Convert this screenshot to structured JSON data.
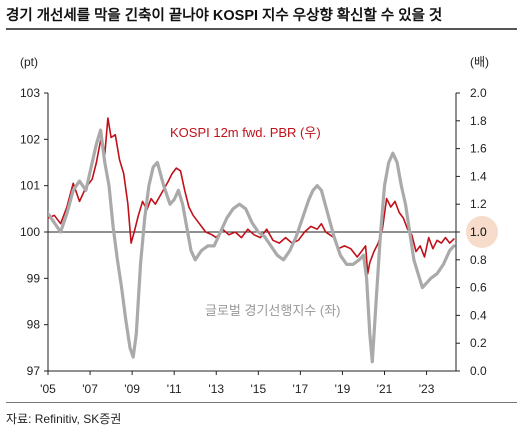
{
  "title": "경기 개선세를 막을 긴축이 끝나야 KOSPI 지수 우상향 확신할 수 있을 것",
  "source": "자료: Refinitiv, SK증권",
  "chart_data": {
    "type": "line",
    "left_unit": "(pt)",
    "right_unit": "(배)",
    "left_axis": {
      "ylim": [
        97,
        103
      ],
      "ticks": [
        "97",
        "98",
        "99",
        "100",
        "101",
        "102",
        "103"
      ]
    },
    "right_axis": {
      "ylim": [
        0.0,
        2.0
      ],
      "ticks": [
        "0.0",
        "0.2",
        "0.4",
        "0.6",
        "0.8",
        "1.0",
        "1.2",
        "1.4",
        "1.6",
        "1.8",
        "2.0"
      ]
    },
    "x_axis": {
      "xlim": [
        2005,
        2024.4
      ],
      "ticks": [
        "'05",
        "'07",
        "'09",
        "'11",
        "'13",
        "'15",
        "'17",
        "'19",
        "'21",
        "'23"
      ]
    },
    "reference_line": {
      "axis": "left",
      "value": 100
    },
    "highlight": {
      "axis": "right",
      "value": 1.0,
      "label": "1.0",
      "color": "#f7dccb"
    },
    "series": [
      {
        "name": "KOSPI 12m fwd. PBR (우)",
        "axis": "right",
        "color": "#c0111a",
        "points": [
          [
            2005.0,
            1.1
          ],
          [
            2005.3,
            1.12
          ],
          [
            2005.6,
            1.06
          ],
          [
            2005.9,
            1.18
          ],
          [
            2006.2,
            1.35
          ],
          [
            2006.5,
            1.22
          ],
          [
            2006.8,
            1.32
          ],
          [
            2007.1,
            1.38
          ],
          [
            2007.3,
            1.5
          ],
          [
            2007.5,
            1.66
          ],
          [
            2007.7,
            1.56
          ],
          [
            2007.85,
            1.82
          ],
          [
            2008.0,
            1.68
          ],
          [
            2008.2,
            1.7
          ],
          [
            2008.4,
            1.52
          ],
          [
            2008.6,
            1.42
          ],
          [
            2008.8,
            1.2
          ],
          [
            2008.95,
            0.92
          ],
          [
            2009.1,
            1.0
          ],
          [
            2009.3,
            1.12
          ],
          [
            2009.5,
            1.22
          ],
          [
            2009.7,
            1.16
          ],
          [
            2009.9,
            1.24
          ],
          [
            2010.1,
            1.2
          ],
          [
            2010.4,
            1.28
          ],
          [
            2010.7,
            1.36
          ],
          [
            2010.9,
            1.42
          ],
          [
            2011.1,
            1.46
          ],
          [
            2011.3,
            1.44
          ],
          [
            2011.5,
            1.3
          ],
          [
            2011.7,
            1.18
          ],
          [
            2011.9,
            1.12
          ],
          [
            2012.2,
            1.06
          ],
          [
            2012.5,
            1.0
          ],
          [
            2012.8,
            0.98
          ],
          [
            2013.0,
            0.96
          ],
          [
            2013.3,
            1.02
          ],
          [
            2013.6,
            0.98
          ],
          [
            2013.9,
            1.0
          ],
          [
            2014.2,
            0.96
          ],
          [
            2014.5,
            1.02
          ],
          [
            2014.8,
            0.98
          ],
          [
            2015.1,
            0.96
          ],
          [
            2015.4,
            1.02
          ],
          [
            2015.7,
            0.94
          ],
          [
            2016.0,
            0.92
          ],
          [
            2016.3,
            0.96
          ],
          [
            2016.6,
            0.92
          ],
          [
            2016.9,
            0.94
          ],
          [
            2017.2,
            1.0
          ],
          [
            2017.5,
            1.04
          ],
          [
            2017.8,
            1.02
          ],
          [
            2018.0,
            1.06
          ],
          [
            2018.2,
            1.0
          ],
          [
            2018.4,
            0.98
          ],
          [
            2018.6,
            0.96
          ],
          [
            2018.8,
            0.88
          ],
          [
            2019.1,
            0.9
          ],
          [
            2019.4,
            0.88
          ],
          [
            2019.7,
            0.82
          ],
          [
            2019.9,
            0.86
          ],
          [
            2020.1,
            0.9
          ],
          [
            2020.2,
            0.7
          ],
          [
            2020.3,
            0.78
          ],
          [
            2020.5,
            0.86
          ],
          [
            2020.7,
            0.92
          ],
          [
            2020.9,
            1.02
          ],
          [
            2021.1,
            1.24
          ],
          [
            2021.3,
            1.18
          ],
          [
            2021.5,
            1.22
          ],
          [
            2021.7,
            1.14
          ],
          [
            2021.9,
            1.1
          ],
          [
            2022.1,
            1.02
          ],
          [
            2022.3,
            0.98
          ],
          [
            2022.5,
            0.86
          ],
          [
            2022.7,
            0.9
          ],
          [
            2022.9,
            0.82
          ],
          [
            2023.1,
            0.96
          ],
          [
            2023.3,
            0.88
          ],
          [
            2023.5,
            0.94
          ],
          [
            2023.7,
            0.92
          ],
          [
            2023.9,
            0.96
          ],
          [
            2024.1,
            0.92
          ],
          [
            2024.3,
            0.95
          ]
        ]
      },
      {
        "name": "글로벌 경기선행지수 (좌)",
        "axis": "left",
        "color": "#aaaaaa",
        "points": [
          [
            2005.0,
            100.4
          ],
          [
            2005.3,
            100.2
          ],
          [
            2005.6,
            100.0
          ],
          [
            2005.9,
            100.4
          ],
          [
            2006.2,
            100.9
          ],
          [
            2006.5,
            101.1
          ],
          [
            2006.8,
            100.9
          ],
          [
            2007.0,
            101.3
          ],
          [
            2007.3,
            101.9
          ],
          [
            2007.5,
            102.2
          ],
          [
            2007.7,
            101.5
          ],
          [
            2007.9,
            101.0
          ],
          [
            2008.1,
            100.1
          ],
          [
            2008.3,
            99.4
          ],
          [
            2008.5,
            98.8
          ],
          [
            2008.7,
            98.1
          ],
          [
            2008.9,
            97.5
          ],
          [
            2009.05,
            97.3
          ],
          [
            2009.2,
            97.8
          ],
          [
            2009.4,
            99.3
          ],
          [
            2009.6,
            100.3
          ],
          [
            2009.8,
            101.0
          ],
          [
            2010.0,
            101.4
          ],
          [
            2010.2,
            101.5
          ],
          [
            2010.5,
            101.0
          ],
          [
            2010.8,
            100.6
          ],
          [
            2011.0,
            100.7
          ],
          [
            2011.2,
            100.9
          ],
          [
            2011.4,
            100.6
          ],
          [
            2011.6,
            100.1
          ],
          [
            2011.8,
            99.6
          ],
          [
            2012.0,
            99.4
          ],
          [
            2012.3,
            99.6
          ],
          [
            2012.6,
            99.7
          ],
          [
            2012.9,
            99.7
          ],
          [
            2013.2,
            100.0
          ],
          [
            2013.5,
            100.3
          ],
          [
            2013.8,
            100.5
          ],
          [
            2014.1,
            100.6
          ],
          [
            2014.4,
            100.5
          ],
          [
            2014.7,
            100.2
          ],
          [
            2015.0,
            100.0
          ],
          [
            2015.3,
            99.9
          ],
          [
            2015.6,
            99.7
          ],
          [
            2015.9,
            99.5
          ],
          [
            2016.2,
            99.4
          ],
          [
            2016.5,
            99.6
          ],
          [
            2016.8,
            99.9
          ],
          [
            2017.1,
            100.3
          ],
          [
            2017.4,
            100.7
          ],
          [
            2017.6,
            100.9
          ],
          [
            2017.8,
            101.0
          ],
          [
            2018.0,
            100.9
          ],
          [
            2018.3,
            100.4
          ],
          [
            2018.6,
            99.9
          ],
          [
            2018.9,
            99.5
          ],
          [
            2019.2,
            99.3
          ],
          [
            2019.5,
            99.3
          ],
          [
            2019.8,
            99.4
          ],
          [
            2020.0,
            99.5
          ],
          [
            2020.15,
            99.0
          ],
          [
            2020.3,
            97.8
          ],
          [
            2020.42,
            97.2
          ],
          [
            2020.6,
            98.5
          ],
          [
            2020.8,
            99.9
          ],
          [
            2021.0,
            101.0
          ],
          [
            2021.2,
            101.5
          ],
          [
            2021.4,
            101.7
          ],
          [
            2021.6,
            101.5
          ],
          [
            2021.8,
            101.0
          ],
          [
            2022.0,
            100.6
          ],
          [
            2022.2,
            100.0
          ],
          [
            2022.4,
            99.4
          ],
          [
            2022.6,
            99.1
          ],
          [
            2022.8,
            98.8
          ],
          [
            2023.0,
            98.9
          ],
          [
            2023.2,
            99.0
          ],
          [
            2023.5,
            99.1
          ],
          [
            2023.8,
            99.3
          ],
          [
            2024.1,
            99.6
          ],
          [
            2024.3,
            99.7
          ]
        ]
      }
    ],
    "annotations": [
      {
        "text": "KOSPI 12m fwd. PBR (우)",
        "color": "#c0111a"
      },
      {
        "text": "글로벌 경기선행지수 (좌)",
        "color": "#999999"
      }
    ],
    "grid": false,
    "legend": "inline"
  }
}
